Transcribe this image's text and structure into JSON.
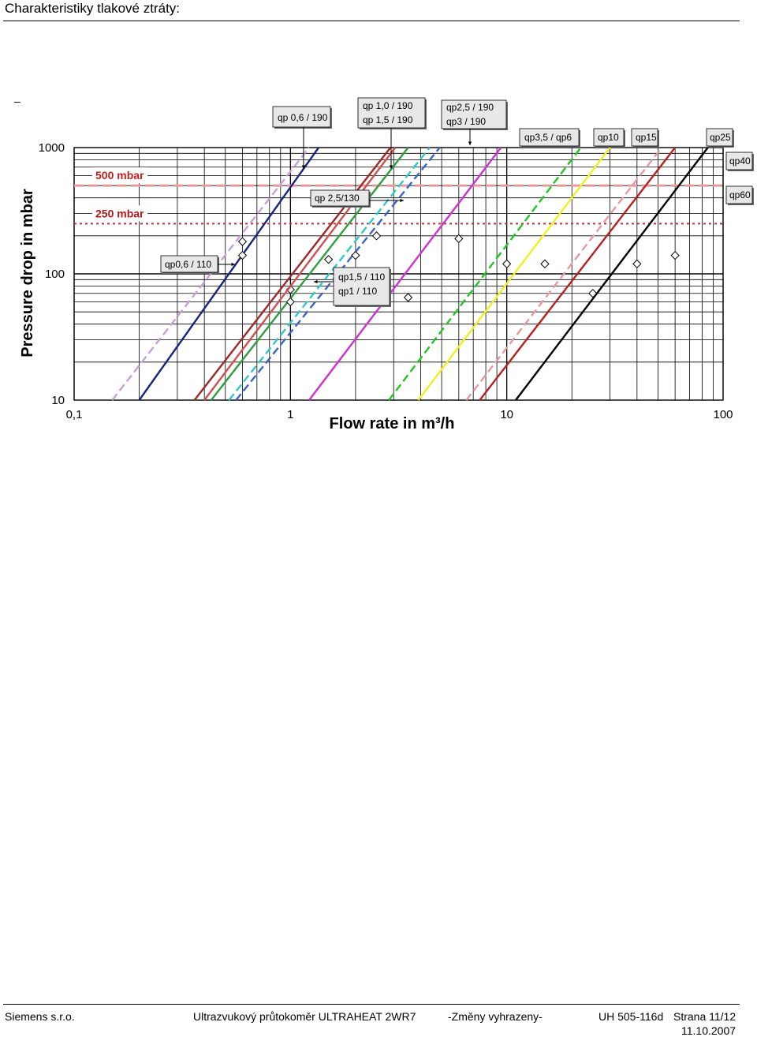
{
  "page_title": "Charakteristiky tlakové ztráty:",
  "footer": {
    "company": "Siemens s.r.o.",
    "product": "Ultrazvukový průtokoměr  ULTRAHEAT  2WR7",
    "notice": "-Změny vyhrazeny-",
    "doc_number": "UH 505-116d",
    "page": "Strana 11/12",
    "date": "11.10.2007"
  },
  "chart_data": {
    "type": "line",
    "xscale": "log",
    "yscale": "log",
    "xlim": [
      0.1,
      100
    ],
    "ylim": [
      10,
      1000
    ],
    "x_ticks": [
      "0,1",
      "1",
      "10",
      "100"
    ],
    "y_ticks": [
      "1000",
      "100",
      "10"
    ],
    "xlabel": "Flow rate in m³/h",
    "ylabel": "Pressure drop in mbar",
    "grid": true,
    "reference_lines": [
      {
        "label": "500 mbar",
        "y": 500,
        "color": "#e89a9a",
        "style": "dashed"
      },
      {
        "label": "250 mbar",
        "y": 250,
        "color": "#c0303a",
        "style": "dotted"
      }
    ],
    "series": [
      {
        "points": [
          [
            0.15,
            10
          ],
          [
            1.22,
            1000
          ]
        ],
        "color": "#c8a0d8",
        "dash": true,
        "markers": [
          [
            0.6,
            180
          ]
        ]
      },
      {
        "points": [
          [
            0.2,
            10
          ],
          [
            1.35,
            1000
          ]
        ],
        "color": "#1a237e",
        "dash": false,
        "markers": [
          [
            0.6,
            140
          ]
        ]
      },
      {
        "points": [
          [
            0.36,
            10
          ],
          [
            2.9,
            1000
          ]
        ],
        "color": "#a02828",
        "dash": false,
        "markers": [
          [
            1.0,
            75
          ]
        ]
      },
      {
        "points": [
          [
            0.4,
            10
          ],
          [
            3.05,
            1000
          ]
        ],
        "color": "#d05050",
        "dash": false,
        "markers": [
          [
            1.5,
            130
          ]
        ]
      },
      {
        "points": [
          [
            0.43,
            10
          ],
          [
            3.5,
            1000
          ]
        ],
        "color": "#2e9e3e",
        "dash": false,
        "markers": [
          [
            1.0,
            60
          ]
        ]
      },
      {
        "points": [
          [
            0.52,
            10
          ],
          [
            4.4,
            1000
          ]
        ],
        "color": "#30c8c8",
        "dash": true,
        "markers": [
          [
            2.5,
            200
          ]
        ]
      },
      {
        "points": [
          [
            0.56,
            10
          ],
          [
            4.9,
            1000
          ]
        ],
        "color": "#3c64c8",
        "dash": true,
        "markers": [
          [
            2.0,
            140
          ]
        ]
      },
      {
        "points": [
          [
            1.22,
            10
          ],
          [
            9.4,
            1000
          ]
        ],
        "color": "#d030d0",
        "dash": false,
        "markers": [
          [
            3.5,
            65
          ],
          [
            6.0,
            190
          ]
        ]
      },
      {
        "points": [
          [
            2.85,
            10
          ],
          [
            22.0,
            1000
          ]
        ],
        "color": "#20c820",
        "dash": true,
        "markers": [
          [
            10.0,
            120
          ]
        ]
      },
      {
        "points": [
          [
            3.9,
            10
          ],
          [
            30.0,
            1000
          ]
        ],
        "color": "#f0f020",
        "dash": false,
        "markers": [
          [
            15.0,
            120
          ]
        ]
      },
      {
        "points": [
          [
            6.5,
            10
          ],
          [
            52.0,
            1000
          ]
        ],
        "color": "#e89a9a",
        "dash": true,
        "markers": [
          [
            25.0,
            70
          ]
        ]
      },
      {
        "points": [
          [
            7.5,
            10
          ],
          [
            60.0,
            1000
          ]
        ],
        "color": "#b82020",
        "dash": false,
        "markers": [
          [
            40.0,
            120
          ]
        ]
      },
      {
        "points": [
          [
            11.0,
            10
          ],
          [
            85.0,
            1000
          ]
        ],
        "color": "#000000",
        "dash": false,
        "markers": [
          [
            60.0,
            140
          ]
        ]
      }
    ],
    "annotations": [
      {
        "text": "qp 0,6 / 190"
      },
      {
        "text": "qp 1,0 / 190"
      },
      {
        "text": "qp 1,5 / 190"
      },
      {
        "text": "qp2,5 / 190"
      },
      {
        "text": "qp3   / 190"
      },
      {
        "text": "qp3,5 / qp6"
      },
      {
        "text": "qp10"
      },
      {
        "text": "qp15"
      },
      {
        "text": "qp25"
      },
      {
        "text": "qp40"
      },
      {
        "text": "qp60"
      },
      {
        "text": "qp 2,5/130"
      },
      {
        "text": "qp0,6 / 110"
      },
      {
        "text": "qp1,5 / 110"
      },
      {
        "text": "qp1 / 110"
      }
    ]
  }
}
